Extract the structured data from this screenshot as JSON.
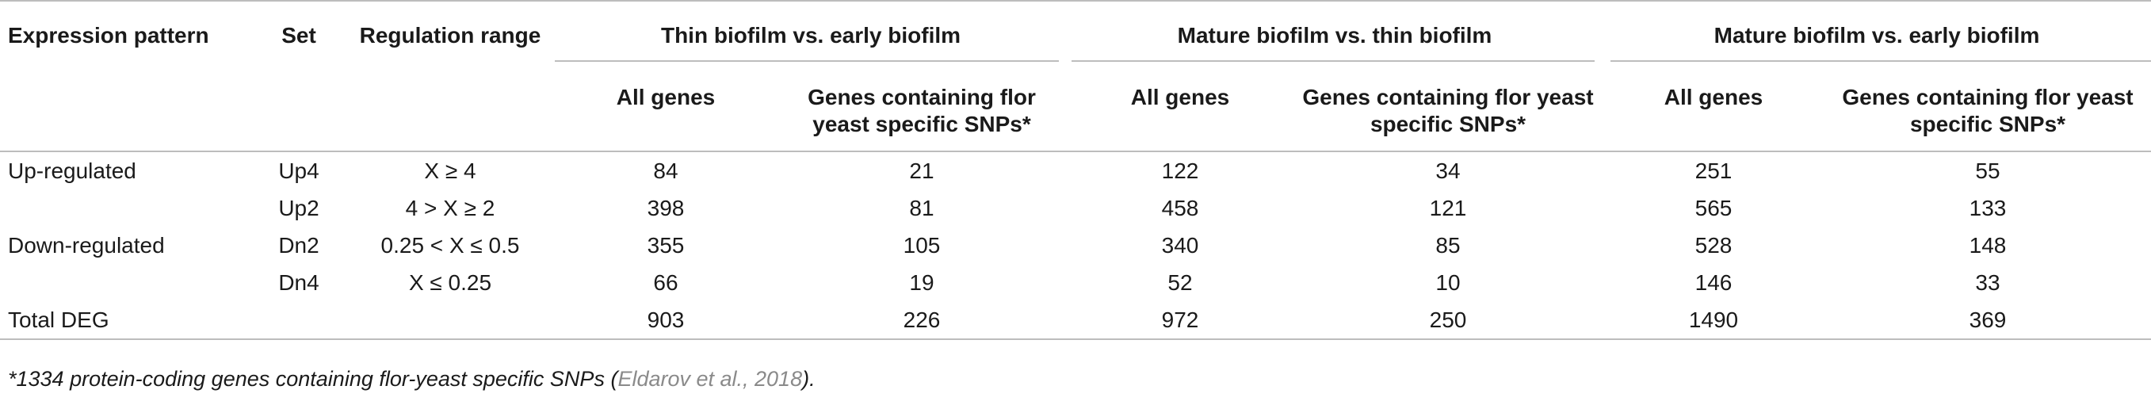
{
  "table": {
    "headers": {
      "expression_pattern": "Expression pattern",
      "set": "Set",
      "regulation_range": "Regulation range",
      "groups": [
        "Thin biofilm vs. early biofilm",
        "Mature biofilm vs. thin biofilm",
        "Mature biofilm vs. early biofilm"
      ],
      "sub_all": "All genes",
      "sub_snp": "Genes containing flor yeast specific SNPs*"
    },
    "rows": [
      {
        "pattern": "Up-regulated",
        "set": "Up4",
        "range": "X ≥ 4",
        "values": [
          "84",
          "21",
          "122",
          "34",
          "251",
          "55"
        ]
      },
      {
        "pattern": "",
        "set": "Up2",
        "range": "4 > X ≥ 2",
        "values": [
          "398",
          "81",
          "458",
          "121",
          "565",
          "133"
        ]
      },
      {
        "pattern": "Down-regulated",
        "set": "Dn2",
        "range": "0.25 < X ≤ 0.5",
        "values": [
          "355",
          "105",
          "340",
          "85",
          "528",
          "148"
        ]
      },
      {
        "pattern": "",
        "set": "Dn4",
        "range": "X ≤ 0.25",
        "values": [
          "66",
          "19",
          "52",
          "10",
          "146",
          "33"
        ]
      },
      {
        "pattern": "Total DEG",
        "set": "",
        "range": "",
        "values": [
          "903",
          "226",
          "972",
          "250",
          "1490",
          "369"
        ]
      }
    ]
  },
  "footnote": {
    "text_before": "*1334 protein-coding genes containing flor-yeast specific SNPs (",
    "citation": "Eldarov et al., 2018",
    "text_after": ")."
  },
  "colors": {
    "text": "#1a1a1a",
    "rule": "#bdbdbd",
    "citation": "#8a8a8a"
  }
}
